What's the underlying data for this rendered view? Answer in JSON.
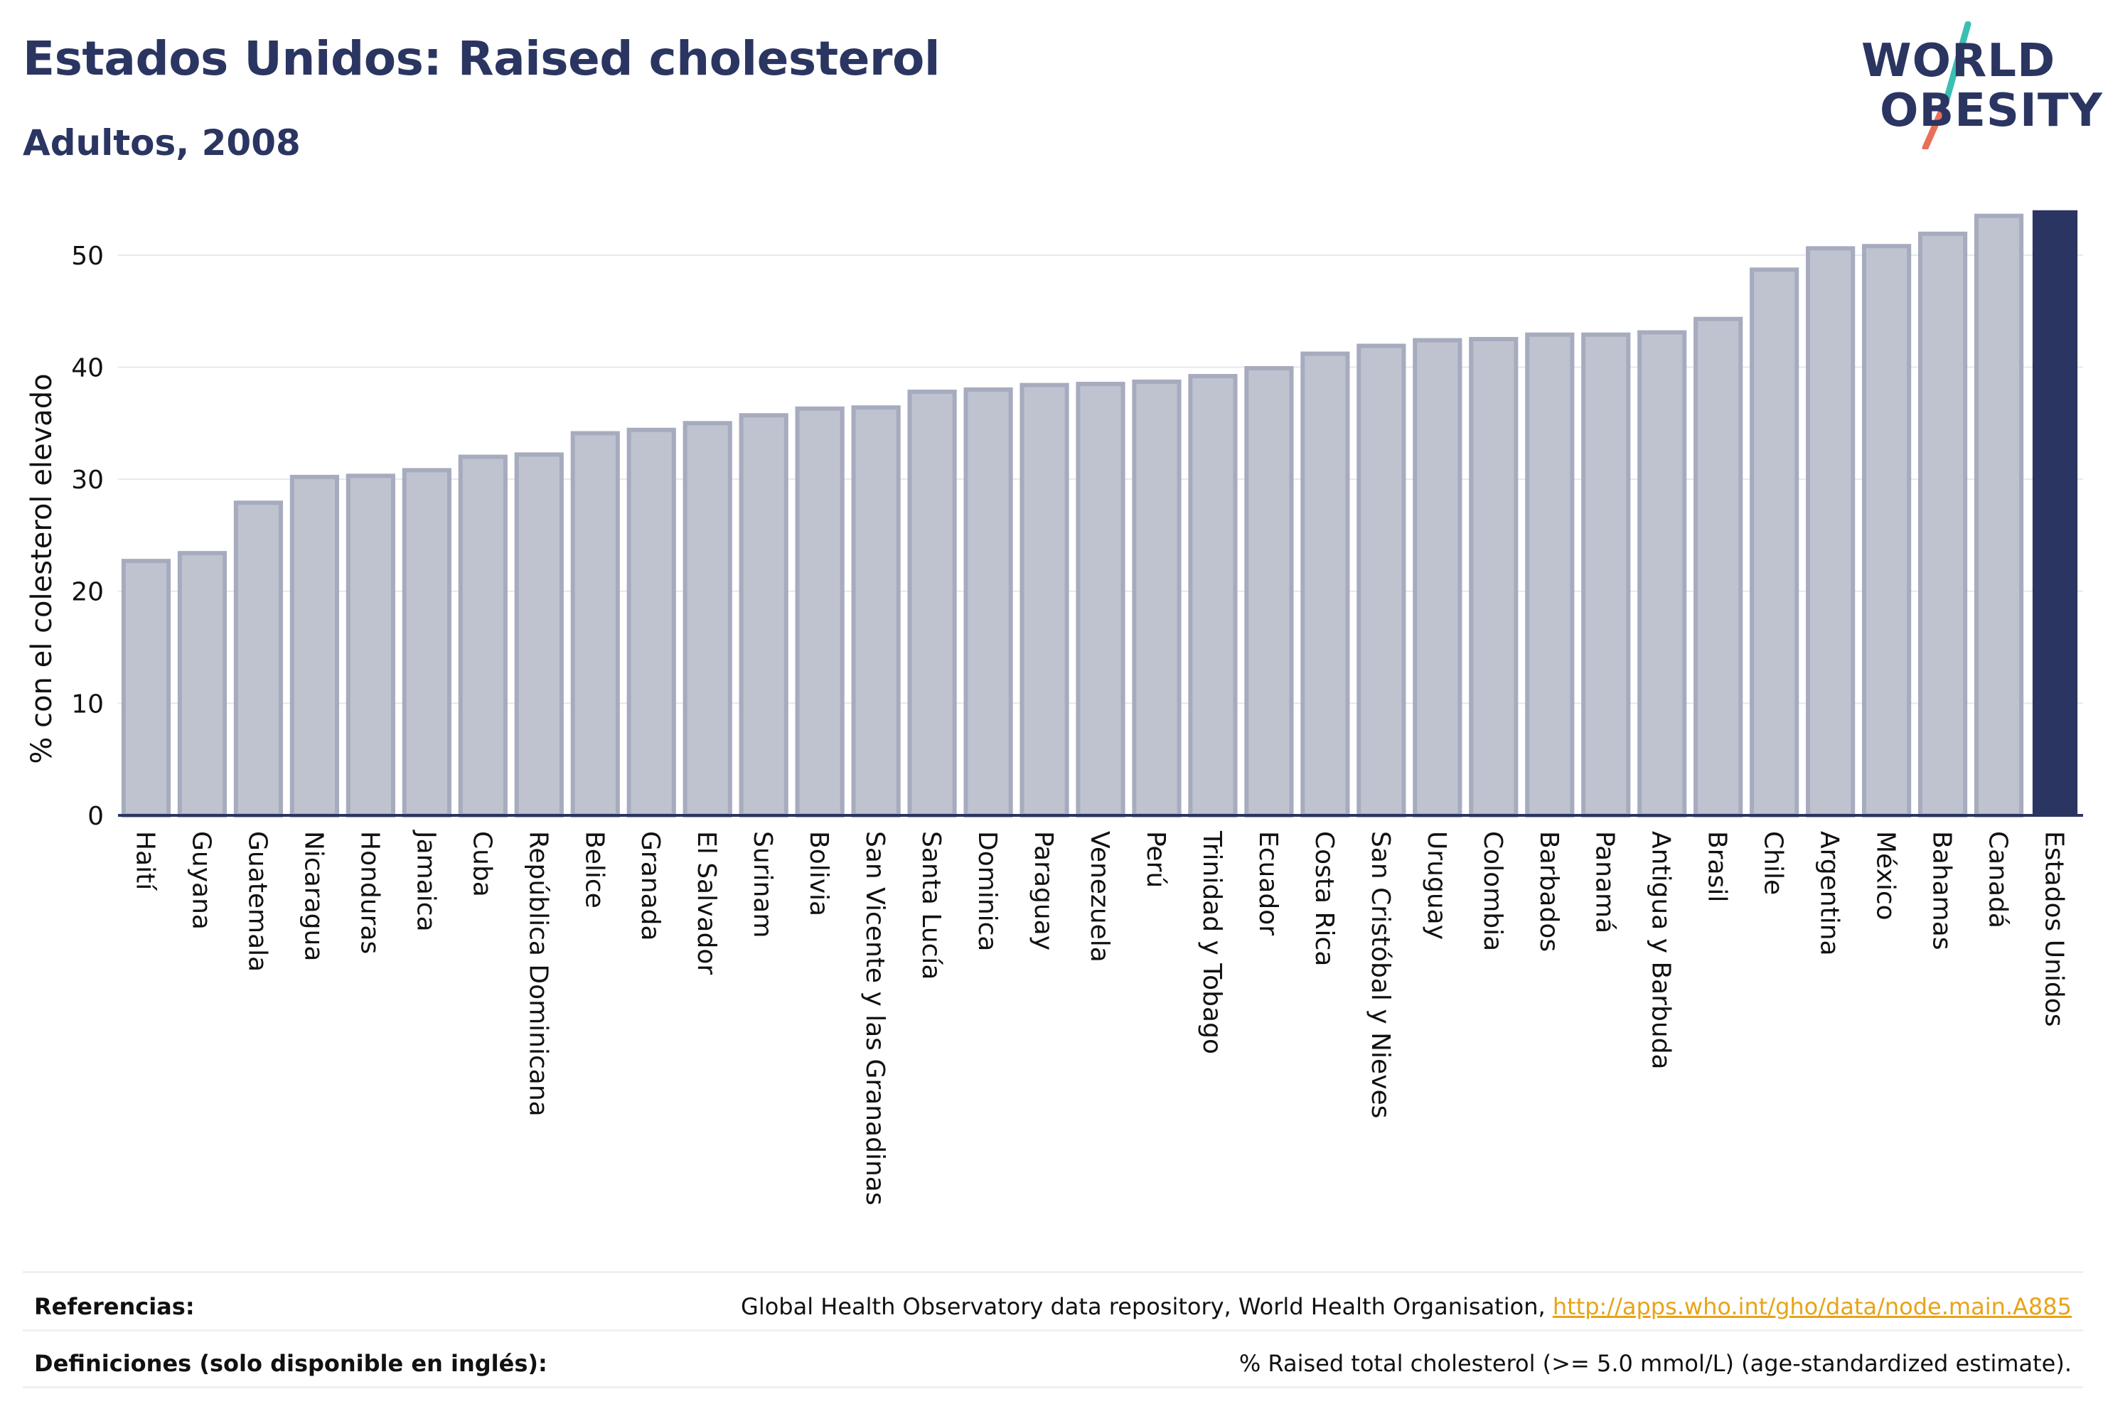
{
  "header": {
    "title": "Estados Unidos: Raised cholesterol",
    "subtitle": "Adultos, 2008"
  },
  "logo": {
    "line1": "WORLD",
    "line2": "OBESITY"
  },
  "chart_data": {
    "type": "bar",
    "ylabel": "% con el colesterol elevado",
    "ylim": [
      0,
      55
    ],
    "yticks": [
      0,
      10,
      20,
      30,
      40,
      50
    ],
    "grid": true,
    "categories": [
      "Haití",
      "Guyana",
      "Guatemala",
      "Nicaragua",
      "Honduras",
      "Jamaica",
      "Cuba",
      "República Dominicana",
      "Belice",
      "Granada",
      "El Salvador",
      "Surinam",
      "Bolivia",
      "San Vicente y las Granadinas",
      "Santa Lucía",
      "Dominica",
      "Paraguay",
      "Venezuela",
      "Perú",
      "Trinidad y Tobago",
      "Ecuador",
      "Costa Rica",
      "San Cristóbal y Nieves",
      "Uruguay",
      "Colombia",
      "Barbados",
      "Panamá",
      "Antigua y Barbuda",
      "Brasil",
      "Chile",
      "Argentina",
      "México",
      "Bahamas",
      "Canadá",
      "Estados Unidos"
    ],
    "values": [
      22.7,
      23.4,
      27.9,
      30.2,
      30.3,
      30.8,
      32.0,
      32.2,
      34.1,
      34.4,
      35.0,
      35.7,
      36.3,
      36.4,
      37.8,
      38.0,
      38.4,
      38.5,
      38.7,
      39.2,
      39.9,
      41.2,
      41.9,
      42.4,
      42.5,
      42.9,
      42.9,
      43.1,
      44.3,
      48.7,
      50.6,
      50.8,
      51.9,
      53.5,
      54.0
    ],
    "highlight": "Estados Unidos",
    "colors": {
      "bar": "#bfc3d0",
      "bar_border": "#a6abbe",
      "highlight": "#2b3561",
      "grid": "#e6e8ee",
      "axis": "#2b3561"
    }
  },
  "footer": {
    "references_label": "Referencias:",
    "references_text": "Global Health Observatory data repository, World Health Organisation,",
    "references_link": "http://apps.who.int/gho/data/node.main.A885",
    "definitions_label": "Definiciones (solo disponible en inglés):",
    "definitions_text": "% Raised total cholesterol (>= 5.0 mmol/L) (age-standardized estimate)."
  },
  "colors": {
    "primary": "#2b3561",
    "link": "#e8a317",
    "logo_slash_top": "#3bbfb3",
    "logo_slash_bottom": "#e8705a"
  }
}
